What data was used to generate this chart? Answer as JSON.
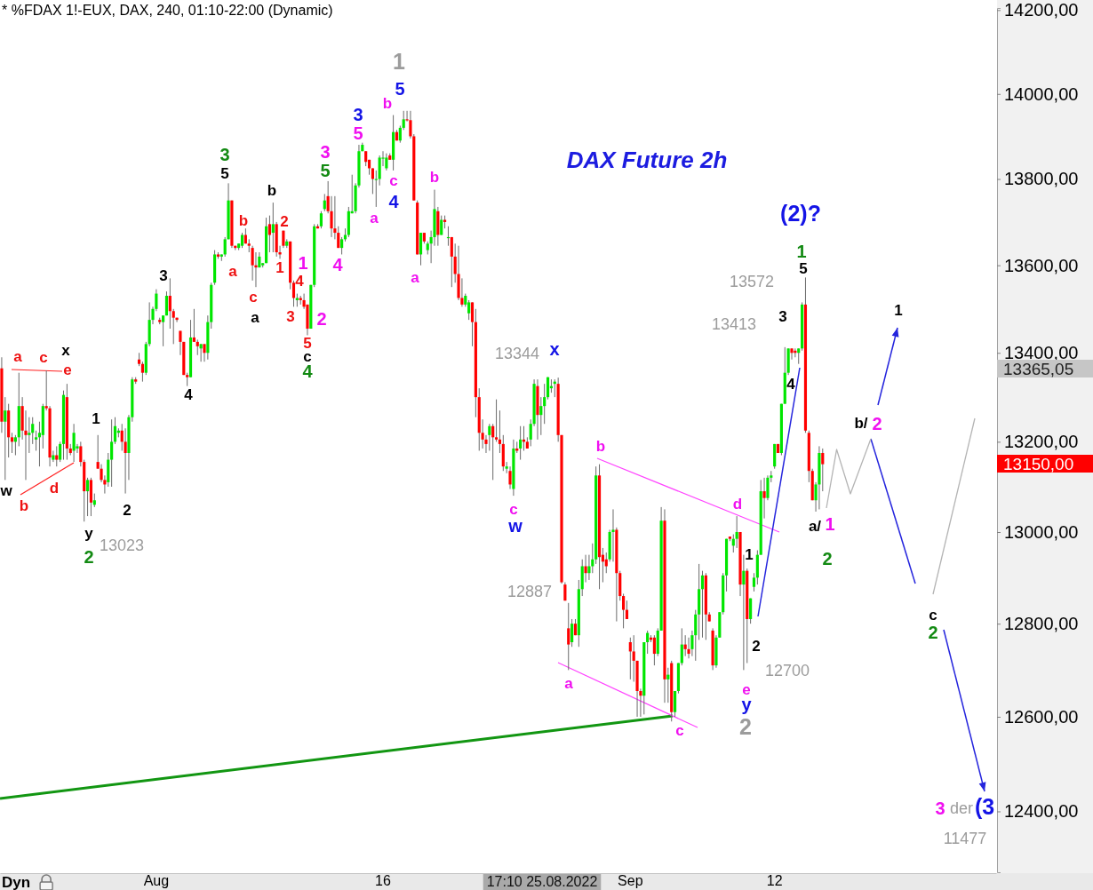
{
  "chart_data": {
    "type": "candlestick",
    "title": "* %FDAX 1!-EUX, DAX, 240, 01:10-22:00 (Dynamic)",
    "subtitle": "DAX Future 2h",
    "categories": [
      null,
      null,
      null,
      null,
      null,
      null,
      null,
      null,
      null,
      null,
      null,
      null,
      null,
      null,
      null,
      null,
      null,
      null,
      null,
      null,
      null,
      null,
      null,
      null,
      null,
      null,
      null,
      null,
      null,
      null,
      null,
      null,
      null,
      null,
      null,
      null,
      null,
      null,
      null,
      null,
      null,
      null,
      null,
      null,
      null,
      "Aug",
      null,
      null,
      null,
      null,
      null,
      null,
      null,
      null,
      null,
      null,
      null,
      null,
      null,
      null,
      null,
      null,
      null,
      null,
      null,
      null,
      null,
      null,
      null,
      null,
      null,
      null,
      null,
      null,
      null,
      null,
      null,
      null,
      null,
      null,
      null,
      null,
      null,
      null,
      null,
      null,
      null,
      null,
      null,
      null,
      null,
      null,
      null,
      null,
      null,
      null,
      null,
      null,
      null,
      null,
      null,
      null,
      null,
      null,
      null,
      null,
      null,
      null,
      null,
      null,
      null,
      "16",
      null,
      null,
      null,
      null,
      null,
      null,
      null,
      null,
      null,
      null,
      null,
      null,
      null,
      null,
      null,
      null,
      null,
      null,
      null,
      null,
      null,
      null,
      null,
      null,
      null,
      null,
      null,
      null,
      null,
      null,
      null,
      null,
      null,
      null,
      null,
      null,
      null,
      null,
      null,
      null,
      null,
      null,
      null,
      null,
      null,
      null,
      null,
      null,
      null,
      null,
      null,
      null,
      null,
      null,
      null,
      null,
      null,
      null,
      null,
      null,
      null,
      null,
      null,
      null,
      null,
      null,
      null,
      null,
      null,
      null,
      null,
      "Sep",
      null,
      null,
      null,
      null,
      null,
      null,
      null,
      null,
      null,
      null,
      null,
      null,
      null,
      null,
      null,
      null,
      null,
      null,
      null,
      null,
      null,
      null,
      null,
      null,
      null,
      null,
      null,
      null,
      null,
      null,
      null,
      null,
      null,
      null,
      null,
      null,
      null,
      null,
      null,
      null,
      null,
      "12",
      null,
      null,
      null,
      null,
      null,
      null,
      null,
      null,
      null,
      null,
      null,
      null,
      null,
      null,
      null,
      null,
      null,
      null,
      null,
      null,
      null,
      null,
      null,
      null,
      null,
      null,
      null,
      null,
      null,
      null,
      null,
      null,
      null,
      null,
      null,
      null,
      null,
      null,
      null,
      null,
      null,
      null,
      null,
      null,
      null,
      null,
      null,
      null,
      null,
      null,
      null,
      null,
      null,
      null,
      null,
      null,
      null,
      null,
      null,
      null,
      null,
      null,
      null,
      null
    ],
    "ohlc": [
      [
        13365,
        13390,
        13220,
        13245
      ],
      [
        13245,
        13300,
        13115,
        13270
      ],
      [
        13270,
        13285,
        13165,
        13210
      ],
      [
        13210,
        13220,
        13175,
        13200
      ],
      [
        13200,
        13215,
        13170,
        13210
      ],
      [
        13210,
        13355,
        13190,
        13280
      ],
      [
        13280,
        13300,
        13205,
        13225
      ],
      [
        13225,
        13270,
        13115,
        13215
      ],
      [
        13215,
        13255,
        13175,
        13220
      ],
      [
        13220,
        13255,
        13195,
        13240
      ],
      [
        13205,
        13225,
        13180,
        13210
      ],
      [
        13210,
        13245,
        13145,
        13220
      ],
      [
        13215,
        13285,
        13185,
        13280
      ],
      [
        13280,
        13360,
        13270,
        13275
      ],
      [
        13275,
        13280,
        13145,
        13165
      ],
      [
        13160,
        13180,
        13155,
        13170
      ],
      [
        13170,
        13190,
        13145,
        13160
      ],
      [
        13160,
        13200,
        13155,
        13195
      ],
      [
        13195,
        13315,
        13160,
        13305
      ],
      [
        13300,
        13330,
        13160,
        13185
      ],
      [
        13185,
        13195,
        13170,
        13175
      ],
      [
        13180,
        13240,
        13155,
        13220
      ],
      [
        13185,
        13195,
        13175,
        13190
      ],
      [
        13190,
        13200,
        13145,
        13155
      ],
      [
        13155,
        13160,
        13023,
        13090
      ],
      [
        13090,
        13120,
        13035,
        13115
      ],
      [
        13115,
        13120,
        13035,
        13065
      ],
      [
        13060,
        13085,
        13055,
        13070
      ],
      [
        13155,
        13215,
        13140,
        13140
      ],
      [
        13140,
        13150,
        13110,
        13115
      ],
      [
        13115,
        13125,
        13085,
        13105
      ],
      [
        13110,
        13175,
        13100,
        13160
      ],
      [
        13160,
        13250,
        13100,
        13200
      ],
      [
        13200,
        13255,
        13195,
        13235
      ],
      [
        13220,
        13230,
        13210,
        13225
      ],
      [
        13225,
        13240,
        13180,
        13200
      ],
      [
        13200,
        13230,
        13085,
        13175
      ],
      [
        13175,
        13260,
        13115,
        13255
      ],
      [
        13255,
        13345,
        13245,
        13340
      ],
      [
        13340,
        13345,
        13330,
        13335
      ],
      [
        13385,
        13400,
        13370,
        13375
      ],
      [
        13375,
        13380,
        13335,
        13355
      ],
      [
        13355,
        13425,
        13350,
        13420
      ],
      [
        13420,
        13515,
        13415,
        13475
      ],
      [
        13475,
        13505,
        13465,
        13500
      ],
      [
        13500,
        13545,
        13495,
        13535
      ],
      [
        13475,
        13480,
        13465,
        13470
      ],
      [
        13470,
        13485,
        13415,
        13485
      ],
      [
        13485,
        13540,
        13485,
        13530
      ],
      [
        13530,
        13570,
        13455,
        13495
      ],
      [
        13495,
        13500,
        13420,
        13480
      ],
      [
        13480,
        13480,
        13470,
        13475
      ],
      [
        13450,
        13450,
        13395,
        13425
      ],
      [
        13425,
        13425,
        13350,
        13350
      ],
      [
        13350,
        13355,
        13325,
        13345
      ],
      [
        13345,
        13475,
        13345,
        13435
      ],
      [
        13435,
        13500,
        13425,
        13425
      ],
      [
        13425,
        13430,
        13395,
        13415
      ],
      [
        13410,
        13420,
        13380,
        13420
      ],
      [
        13420,
        13420,
        13380,
        13400
      ],
      [
        13400,
        13485,
        13385,
        13470
      ],
      [
        13470,
        13560,
        13455,
        13555
      ],
      [
        13560,
        13635,
        13555,
        13625
      ],
      [
        13625,
        13630,
        13615,
        13620
      ],
      [
        13620,
        13625,
        13610,
        13625
      ],
      [
        13625,
        13665,
        13620,
        13660
      ],
      [
        13660,
        13790,
        13660,
        13750
      ],
      [
        13750,
        13750,
        13640,
        13645
      ],
      [
        13645,
        13645,
        13635,
        13640
      ],
      [
        13640,
        13650,
        13635,
        13650
      ],
      [
        13645,
        13675,
        13640,
        13670
      ],
      [
        13670,
        13685,
        13650,
        13650
      ],
      [
        13650,
        13660,
        13630,
        13645
      ],
      [
        13640,
        13645,
        13565,
        13600
      ],
      [
        13600,
        13630,
        13550,
        13595
      ],
      [
        13595,
        13630,
        13595,
        13620
      ],
      [
        13600,
        13605,
        13595,
        13605
      ],
      [
        13605,
        13710,
        13605,
        13690
      ],
      [
        13695,
        13715,
        13630,
        13670
      ],
      [
        13675,
        13745,
        13630,
        13695
      ],
      [
        13695,
        13700,
        13620,
        13630
      ],
      [
        13630,
        13645,
        13615,
        13625
      ],
      [
        13680,
        13680,
        13640,
        13645
      ],
      [
        13645,
        13660,
        13640,
        13655
      ],
      [
        13655,
        13655,
        13545,
        13560
      ],
      [
        13560,
        13565,
        13505,
        13525
      ],
      [
        13520,
        13535,
        13505,
        13525
      ],
      [
        13525,
        13530,
        13510,
        13520
      ],
      [
        13520,
        13535,
        13500,
        13505
      ],
      [
        13510,
        13510,
        13440,
        13455
      ],
      [
        13455,
        13555,
        13455,
        13555
      ],
      [
        13555,
        13695,
        13550,
        13690
      ],
      [
        13690,
        13695,
        13685,
        13685
      ],
      [
        13690,
        13725,
        13685,
        13720
      ],
      [
        13730,
        13765,
        13725,
        13750
      ],
      [
        13760,
        13795,
        13720,
        13725
      ],
      [
        13725,
        13760,
        13665,
        13685
      ],
      [
        13685,
        13760,
        13660,
        13675
      ],
      [
        13675,
        13690,
        13640,
        13640
      ],
      [
        13640,
        13665,
        13625,
        13660
      ],
      [
        13660,
        13685,
        13655,
        13670
      ],
      [
        13670,
        13735,
        13665,
        13725
      ],
      [
        13720,
        13810,
        13720,
        13725
      ],
      [
        13725,
        13790,
        13720,
        13785
      ],
      [
        13785,
        13880,
        13780,
        13865
      ],
      [
        13865,
        13885,
        13865,
        13880
      ],
      [
        13865,
        13865,
        13830,
        13840
      ],
      [
        13845,
        13845,
        13810,
        13825
      ],
      [
        13825,
        13825,
        13765,
        13800
      ],
      [
        13800,
        13820,
        13735,
        13800
      ],
      [
        13800,
        13855,
        13785,
        13850
      ],
      [
        13850,
        13865,
        13830,
        13850
      ],
      [
        13825,
        13860,
        13820,
        13850
      ],
      [
        13855,
        13860,
        13845,
        13845
      ],
      [
        13845,
        13950,
        13820,
        13910
      ],
      [
        13910,
        13915,
        13890,
        13890
      ],
      [
        13890,
        13925,
        13885,
        13920
      ],
      [
        13920,
        13960,
        13915,
        13940
      ],
      [
        13940,
        13960,
        13935,
        13938
      ],
      [
        13938,
        13960,
        13895,
        13900
      ],
      [
        13900,
        13905,
        13750,
        13750
      ],
      [
        13745,
        13750,
        13625,
        13625
      ],
      [
        13625,
        13675,
        13600,
        13675
      ],
      [
        13675,
        13675,
        13650,
        13655
      ],
      [
        13635,
        13655,
        13625,
        13650
      ],
      [
        13650,
        13680,
        13605,
        13665
      ],
      [
        13665,
        13775,
        13645,
        13730
      ],
      [
        13725,
        13735,
        13645,
        13670
      ],
      [
        13670,
        13715,
        13670,
        13705
      ],
      [
        13705,
        13715,
        13685,
        13700
      ],
      [
        13665,
        13690,
        13645,
        13665
      ],
      [
        13665,
        13665,
        13550,
        13620
      ],
      [
        13620,
        13650,
        13560,
        13580
      ],
      [
        13580,
        13645,
        13520,
        13525
      ],
      [
        13525,
        13570,
        13505,
        13510
      ],
      [
        13510,
        13535,
        13505,
        13530
      ],
      [
        13490,
        13520,
        13475,
        13515
      ],
      [
        13515,
        13515,
        13415,
        13470
      ],
      [
        13470,
        13500,
        13255,
        13300
      ],
      [
        13300,
        13320,
        13180,
        13220
      ],
      [
        13220,
        13250,
        13185,
        13205
      ],
      [
        13205,
        13215,
        13175,
        13195
      ],
      [
        13215,
        13240,
        13180,
        13235
      ],
      [
        13235,
        13240,
        13115,
        13210
      ],
      [
        13210,
        13295,
        13200,
        13205
      ],
      [
        13205,
        13270,
        13175,
        13195
      ],
      [
        13195,
        13215,
        13135,
        13145
      ],
      [
        13140,
        13155,
        13130,
        13145
      ],
      [
        13135,
        13145,
        13095,
        13105
      ],
      [
        13095,
        13205,
        13080,
        13185
      ],
      [
        13185,
        13200,
        13175,
        13180
      ],
      [
        13185,
        13235,
        13160,
        13205
      ],
      [
        13205,
        13235,
        13180,
        13200
      ],
      [
        13200,
        13210,
        13185,
        13185
      ],
      [
        13205,
        13250,
        13190,
        13240
      ],
      [
        13240,
        13340,
        13235,
        13330
      ],
      [
        13325,
        13340,
        13205,
        13260
      ],
      [
        13260,
        13300,
        13215,
        13280
      ],
      [
        13280,
        13330,
        13240,
        13300
      ],
      [
        13300,
        13345,
        13295,
        13345
      ],
      [
        13320,
        13340,
        13310,
        13325
      ],
      [
        13330,
        13340,
        13300,
        13335
      ],
      [
        13330,
        13344,
        13200,
        13215
      ],
      [
        13215,
        13215,
        12887,
        12890
      ],
      [
        12885,
        12890,
        12850,
        12850
      ],
      [
        12790,
        12845,
        12700,
        12755
      ],
      [
        12760,
        12810,
        12750,
        12800
      ],
      [
        12800,
        12810,
        12775,
        12775
      ],
      [
        12775,
        12895,
        12750,
        12875
      ],
      [
        12875,
        12940,
        12860,
        12925
      ],
      [
        12925,
        12950,
        12890,
        12910
      ],
      [
        12910,
        12950,
        12895,
        12925
      ],
      [
        12925,
        12975,
        12910,
        12940
      ],
      [
        12940,
        13145,
        12930,
        13125
      ],
      [
        13125,
        13150,
        12875,
        12945
      ],
      [
        12950,
        12965,
        12890,
        12935
      ],
      [
        12940,
        12955,
        12910,
        12925
      ],
      [
        12940,
        13005,
        12935,
        13000
      ],
      [
        13000,
        13050,
        12935,
        13005
      ],
      [
        13005,
        13010,
        12805,
        12910
      ],
      [
        12910,
        12915,
        12850,
        12860
      ],
      [
        12860,
        12865,
        12790,
        12830
      ],
      [
        12830,
        12850,
        12810,
        12810
      ],
      [
        12760,
        12770,
        12680,
        12740
      ],
      [
        12740,
        12775,
        12675,
        12720
      ],
      [
        12720,
        12720,
        12600,
        12655
      ],
      [
        12655,
        12660,
        12600,
        12645
      ],
      [
        12645,
        12760,
        12605,
        12760
      ],
      [
        12760,
        12785,
        12735,
        12780
      ],
      [
        12770,
        12775,
        12760,
        12765
      ],
      [
        12770,
        12775,
        12710,
        12735
      ],
      [
        12735,
        12790,
        12730,
        12785
      ],
      [
        12785,
        13055,
        12785,
        13025
      ],
      [
        13025,
        13050,
        12630,
        12680
      ],
      [
        12680,
        12705,
        12630,
        12690
      ],
      [
        12715,
        12720,
        12590,
        12610
      ],
      [
        12610,
        12655,
        12600,
        12655
      ],
      [
        12655,
        12715,
        12650,
        12715
      ],
      [
        12715,
        12790,
        12710,
        12755
      ],
      [
        12755,
        12775,
        12730,
        12745
      ],
      [
        12745,
        12770,
        12725,
        12735
      ],
      [
        12745,
        12785,
        12730,
        12775
      ],
      [
        12775,
        12830,
        12720,
        12820
      ],
      [
        12820,
        12930,
        12765,
        12875
      ],
      [
        12875,
        12915,
        12770,
        12905
      ],
      [
        12905,
        12910,
        12765,
        12820
      ],
      [
        12820,
        12825,
        12805,
        12805
      ],
      [
        12785,
        12790,
        12700,
        12710
      ],
      [
        12710,
        12775,
        12705,
        12770
      ],
      [
        12770,
        12825,
        12770,
        12825
      ],
      [
        12825,
        12910,
        12820,
        12905
      ],
      [
        12905,
        12985,
        12870,
        12985
      ],
      [
        12990,
        12990,
        12980,
        12985
      ],
      [
        12970,
        12995,
        12955,
        12985
      ],
      [
        12985,
        13035,
        12965,
        13000
      ],
      [
        13000,
        13000,
        12860,
        12885
      ],
      [
        12885,
        12950,
        12700,
        12915
      ],
      [
        12915,
        12920,
        12715,
        12810
      ],
      [
        12810,
        12855,
        12800,
        12855
      ],
      [
        12880,
        12910,
        12870,
        12900
      ],
      [
        12900,
        12960,
        12885,
        12950
      ],
      [
        12950,
        13115,
        12950,
        13090
      ],
      [
        13090,
        13120,
        13030,
        13075
      ],
      [
        13075,
        13125,
        13070,
        13120
      ],
      [
        13120,
        13135,
        13110,
        13125
      ],
      [
        13145,
        13195,
        13140,
        13195
      ],
      [
        13195,
        13195,
        13175,
        13175
      ],
      [
        13175,
        13285,
        13170,
        13285
      ],
      [
        13285,
        13413,
        13285,
        13355
      ],
      [
        13355,
        13410,
        13350,
        13410
      ],
      [
        13410,
        13410,
        13385,
        13400
      ],
      [
        13405,
        13410,
        13390,
        13400
      ],
      [
        13400,
        13410,
        13375,
        13410
      ],
      [
        13410,
        13515,
        13405,
        13510
      ],
      [
        13510,
        13572,
        13220,
        13225
      ],
      [
        13220,
        13225,
        13110,
        13135
      ],
      [
        13135,
        13140,
        13070,
        13070
      ],
      [
        13070,
        13110,
        13045,
        13105
      ],
      [
        13105,
        13190,
        13050,
        13175
      ],
      [
        13175,
        13185,
        13090,
        13150
      ],
      null,
      null,
      null,
      null,
      null,
      null,
      null,
      null,
      null,
      null,
      null,
      null,
      null,
      null,
      null,
      null,
      null,
      null,
      null,
      null,
      null,
      null,
      null,
      null,
      null,
      null,
      null,
      null,
      null,
      null,
      null,
      null,
      null,
      null,
      null,
      null,
      null,
      null,
      null,
      null,
      null,
      null,
      null,
      null,
      null,
      null,
      null,
      null,
      null,
      null
    ],
    "colors": [
      "#ff0000",
      "#00e600",
      "#ff0000",
      "#ff0000",
      "#00e600",
      "#00e600",
      "#ff0000",
      "#ff0000",
      "#00e600",
      "#00e600",
      "#00e600",
      "#00e600",
      "#00e600",
      "#ff0000",
      "#ff0000",
      "#00e600",
      "#ff0000",
      "#00e600",
      "#00e600",
      "#ff0000",
      "#ff0000",
      "#00e600",
      "#00e600",
      "#ff0000",
      "#ff0000",
      "#00e600",
      "#ff0000",
      "#00e600",
      "#ff0000",
      "#ff0000",
      "#ff0000",
      "#00e600",
      "#00e600",
      "#00e600",
      "#00e600",
      "#ff0000",
      "#ff0000",
      "#00e600",
      "#00e600",
      "#ff0000",
      "#ff0000",
      "#ff0000",
      "#00e600",
      "#00e600",
      "#00e600",
      "#00e600",
      "#ff0000",
      "#00e600",
      "#00e600",
      "#ff0000",
      "#ff0000",
      "#ff0000",
      "#ff0000",
      "#ff0000",
      "#ff0000",
      "#00e600",
      "#ff0000",
      "#ff0000",
      "#00e600",
      "#ff0000",
      "#00e600",
      "#00e600",
      "#00e600",
      "#ff0000",
      "#00e600",
      "#00e600",
      "#00e600",
      "#ff0000",
      "#ff0000",
      "#00e600",
      "#00e600",
      "#ff0000",
      "#ff0000",
      "#ff0000",
      "#ff0000",
      "#00e600",
      "#00e600",
      "#00e600",
      "#ff0000",
      "#00e600",
      "#ff0000",
      "#ff0000",
      "#ff0000",
      "#00e600",
      "#ff0000",
      "#ff0000",
      "#00e600",
      "#ff0000",
      "#ff0000",
      "#ff0000",
      "#00e600",
      "#00e600",
      "#ff0000",
      "#00e600",
      "#00e600",
      "#ff0000",
      "#ff0000",
      "#ff0000",
      "#ff0000",
      "#00e600",
      "#00e600",
      "#00e600",
      "#00e600",
      "#00e600",
      "#00e600",
      "#00e600",
      "#ff0000",
      "#ff0000",
      "#ff0000",
      "#00e600",
      "#00e600",
      "#00e600",
      "#00e600",
      "#ff0000",
      "#00e600",
      "#ff0000",
      "#00e600",
      "#00e600",
      "#ff0000",
      "#ff0000",
      "#ff0000",
      "#ff0000",
      "#00e600",
      "#ff0000",
      "#00e600",
      "#00e600",
      "#00e600",
      "#ff0000",
      "#00e600",
      "#ff0000",
      "#00e600",
      "#ff0000",
      "#ff0000",
      "#ff0000",
      "#ff0000",
      "#00e600",
      "#00e600",
      "#ff0000",
      "#ff0000",
      "#ff0000",
      "#ff0000",
      "#ff0000",
      "#00e600",
      "#ff0000",
      "#ff0000",
      "#ff0000",
      "#ff0000",
      "#00e600",
      "#ff0000",
      "#00e600",
      "#ff0000",
      "#00e600",
      "#ff0000",
      "#ff0000",
      "#00e600",
      "#00e600",
      "#ff0000",
      "#00e600",
      "#00e600",
      "#00e600",
      "#00e600",
      "#00e600",
      "#ff0000",
      "#ff0000",
      "#ff0000",
      "#ff0000",
      "#00e600",
      "#ff0000",
      "#00e600",
      "#00e600",
      "#ff0000",
      "#00e600",
      "#00e600",
      "#00e600",
      "#ff0000",
      "#ff0000",
      "#ff0000",
      "#00e600",
      "#00e600",
      "#ff0000",
      "#ff0000",
      "#ff0000",
      "#ff0000",
      "#ff0000",
      "#ff0000",
      "#ff0000",
      "#ff0000",
      "#00e600",
      "#00e600",
      "#ff0000",
      "#ff0000",
      "#00e600",
      "#00e600",
      "#ff0000",
      "#00e600",
      "#ff0000",
      "#00e600",
      "#00e600",
      "#00e600",
      "#ff0000",
      "#ff0000",
      "#00e600",
      "#00e600",
      "#00e600",
      "#00e600",
      "#ff0000",
      "#ff0000",
      "#ff0000",
      "#00e600",
      "#00e600",
      "#00e600",
      "#00e600",
      "#ff0000",
      "#00e600",
      "#00e600",
      "#ff0000",
      "#00e600",
      "#ff0000",
      "#00e600",
      "#00e600",
      "#00e600",
      "#00e600",
      "#ff0000",
      "#00e600",
      "#00e600",
      "#00e600",
      "#ff0000",
      "#00e600",
      "#00e600",
      "#00e600",
      "#ff0000",
      "#ff0000",
      "#00e600",
      "#00e600",
      "#ff0000",
      "#ff0000",
      "#ff0000",
      "#00e600",
      "#00e600",
      "#ff0000",
      null,
      null,
      null,
      null,
      null,
      null,
      null,
      null,
      null,
      null,
      null,
      null,
      null,
      null,
      null,
      null,
      null,
      null,
      null,
      null,
      null,
      null,
      null,
      null,
      null,
      null,
      null,
      null,
      null,
      null,
      null,
      null,
      null,
      null,
      null,
      null,
      null,
      null,
      null,
      null,
      null,
      null,
      null,
      null,
      null,
      null,
      null,
      null,
      null,
      null
    ],
    "ylim": [
      12273,
      14205
    ],
    "yticks": [
      {
        "value": 14200,
        "label": "14200,00"
      },
      {
        "value": 14000,
        "label": "14000,00"
      },
      {
        "value": 13800,
        "label": "13800,00"
      },
      {
        "value": 13600,
        "label": "13600,00"
      },
      {
        "value": 13400,
        "label": "13400,00"
      },
      {
        "value": 13200,
        "label": "13200,00"
      },
      {
        "value": 13000,
        "label": "13000,00"
      },
      {
        "value": 12800,
        "label": "12800,00"
      },
      {
        "value": 12600,
        "label": "12600,00"
      },
      {
        "value": 12400,
        "label": "12400,00"
      }
    ],
    "log": "y",
    "annotations": [
      {
        "text": "a",
        "y": 13355
      },
      {
        "text": "c",
        "y": 13360
      },
      "x",
      "e",
      {
        "text": "w",
        "y": 13115
      },
      {
        "text": "b",
        "y": 13115
      },
      "d",
      {
        "text": "1",
        "y": 13215
      },
      "y",
      "2",
      "13023",
      "2",
      "3",
      "4",
      {
        "text": "3",
        "y": 13790
      },
      "5",
      "a",
      "b",
      "c",
      "a",
      "b",
      {
        "text": "2",
        "y": 13680
      },
      "1",
      "4",
      "3",
      "1",
      "2",
      "5",
      "c",
      "4",
      "3",
      {
        "text": "5",
        "y": 13795
      },
      {
        "text": "4",
        "y": 13640
      },
      "3",
      "5",
      "a",
      "b",
      "1",
      "5",
      "c",
      "4",
      "b",
      "a",
      "13344",
      "x",
      "c",
      "w",
      "b",
      "12887",
      "a",
      "c",
      "d",
      "1",
      "2",
      "e",
      "y",
      "2",
      "12700",
      "13413",
      "13572",
      "3",
      "4",
      "1",
      "5",
      "(2)?",
      "a/",
      "1",
      "2",
      "b/",
      "2",
      "1",
      "c",
      "2",
      "3",
      "der",
      "(3",
      "11477",
      "17:10 25.08.2022",
      "13365,05",
      "13150,00",
      "Dyn"
    ]
  }
}
